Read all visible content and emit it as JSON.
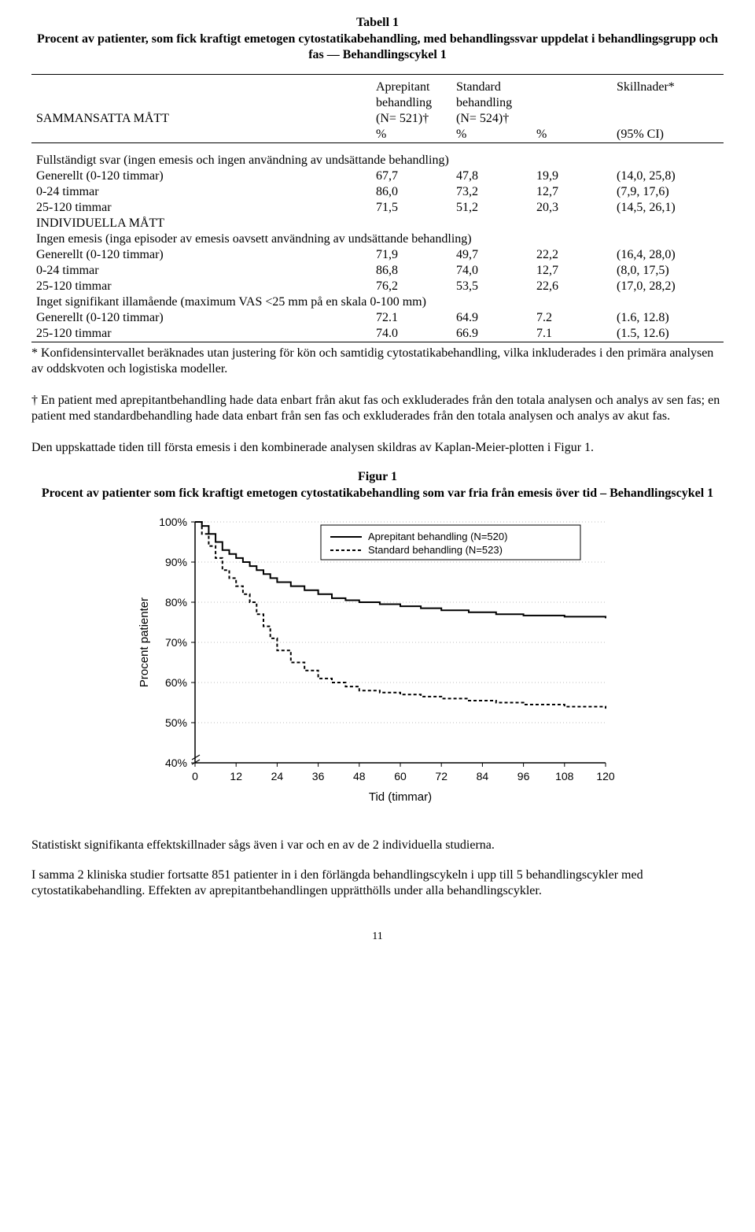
{
  "table": {
    "title": "Tabell 1",
    "subtitle": "Procent av patienter, som fick kraftigt emetogen cytostatikabehandling, med behandlingssvar uppdelat i behandlingsgrupp och fas — Behandlingscykel 1",
    "header": {
      "row_label": "SAMMANSATTA MÅTT",
      "col1_l1": "Aprepitant",
      "col1_l2": "behandling",
      "col1_l3": "(N= 521)†",
      "col2_l1": "Standard",
      "col2_l2": "behandling",
      "col2_l3": "(N= 524)†",
      "col3_l1": "Skillnader*",
      "pct": "%",
      "ci": "(95% CI)"
    },
    "section1": {
      "head": "Fullständigt svar (ingen emesis och ingen användning av undsättande behandling)",
      "rows": [
        {
          "label": "Generellt (0-120 timmar)",
          "a": "67,7",
          "b": "47,8",
          "d": "19,9",
          "ci": "(14,0, 25,8)"
        },
        {
          "label": "0-24 timmar",
          "a": "86,0",
          "b": "73,2",
          "d": "12,7",
          "ci": "(7,9, 17,6)"
        },
        {
          "label": "25-120 timmar",
          "a": "71,5",
          "b": "51,2",
          "d": "20,3",
          "ci": "(14,5, 26,1)"
        }
      ]
    },
    "ind_head": "INDIVIDUELLA MÅTT",
    "section2": {
      "head": "Ingen emesis (inga episoder av emesis oavsett användning av undsättande behandling)",
      "rows": [
        {
          "label": "Generellt (0-120 timmar)",
          "a": "71,9",
          "b": "49,7",
          "d": "22,2",
          "ci": "(16,4, 28,0)"
        },
        {
          "label": "0-24 timmar",
          "a": "86,8",
          "b": "74,0",
          "d": "12,7",
          "ci": "(8,0, 17,5)"
        },
        {
          "label": "25-120 timmar",
          "a": "76,2",
          "b": "53,5",
          "d": "22,6",
          "ci": "(17,0, 28,2)"
        }
      ]
    },
    "section3": {
      "head": "Inget signifikant illamående (maximum VAS <25 mm på en skala 0-100 mm)",
      "rows": [
        {
          "label": "Generellt (0-120 timmar)",
          "a": "72.1",
          "b": "64.9",
          "d": "7.2",
          "ci": "(1.6, 12.8)"
        },
        {
          "label": "25-120 timmar",
          "a": "74.0",
          "b": "66.9",
          "d": "7.1",
          "ci": "(1.5, 12.6)"
        }
      ]
    },
    "footnote_star": "* Konfidensintervallet beräknades utan justering för kön och samtidig cytostatikabehandling, vilka inkluderades i den primära analysen av oddskvoten och logistiska modeller.",
    "footnote_dagger": "† En patient med aprepitantbehandling hade data enbart från akut fas och exkluderades från den totala analysen och analys av sen fas; en patient med standardbehandling hade data enbart från sen fas och exkluderades från den totala analysen och analys av akut fas."
  },
  "para1": "Den uppskattade tiden till första emesis i den kombinerade analysen skildras av Kaplan-Meier-plotten i Figur 1.",
  "figure": {
    "title": "Figur 1",
    "subtitle": "Procent av patienter som fick kraftigt emetogen cytostatikabehandling som var fria från emesis över tid – Behandlingscykel 1",
    "ylabel": "Procent patienter",
    "xlabel": "Tid (timmar)",
    "legend": {
      "a": "Aprepitant behandling (N=520)",
      "b": "Standard behandling (N=523)"
    },
    "yticks": [
      40,
      50,
      60,
      70,
      80,
      90,
      100
    ],
    "xticks": [
      0,
      12,
      24,
      36,
      48,
      60,
      72,
      84,
      96,
      108,
      120
    ],
    "xlim": [
      0,
      120
    ],
    "ylim": [
      40,
      100
    ],
    "grid_color": "#bdbdbd",
    "axis_color": "#000000",
    "series": {
      "aprepitant": {
        "style": "solid",
        "color": "#000000",
        "width": 2,
        "points": [
          [
            0,
            100
          ],
          [
            2,
            99
          ],
          [
            4,
            97
          ],
          [
            6,
            95
          ],
          [
            8,
            93
          ],
          [
            10,
            92
          ],
          [
            12,
            91
          ],
          [
            14,
            90
          ],
          [
            16,
            89
          ],
          [
            18,
            88
          ],
          [
            20,
            87
          ],
          [
            22,
            86
          ],
          [
            24,
            85
          ],
          [
            28,
            84
          ],
          [
            32,
            83
          ],
          [
            36,
            82
          ],
          [
            40,
            81
          ],
          [
            44,
            80.5
          ],
          [
            48,
            80
          ],
          [
            54,
            79.5
          ],
          [
            60,
            79
          ],
          [
            66,
            78.5
          ],
          [
            72,
            78
          ],
          [
            80,
            77.5
          ],
          [
            88,
            77
          ],
          [
            96,
            76.7
          ],
          [
            108,
            76.4
          ],
          [
            120,
            76
          ]
        ]
      },
      "standard": {
        "style": "dashed",
        "color": "#000000",
        "width": 2,
        "dash": "4,3",
        "points": [
          [
            0,
            100
          ],
          [
            2,
            97
          ],
          [
            4,
            94
          ],
          [
            6,
            91
          ],
          [
            8,
            88
          ],
          [
            10,
            86
          ],
          [
            12,
            84
          ],
          [
            14,
            82
          ],
          [
            16,
            80
          ],
          [
            18,
            77
          ],
          [
            20,
            74
          ],
          [
            22,
            71
          ],
          [
            24,
            68
          ],
          [
            28,
            65
          ],
          [
            32,
            63
          ],
          [
            36,
            61
          ],
          [
            40,
            60
          ],
          [
            44,
            59
          ],
          [
            48,
            58
          ],
          [
            54,
            57.5
          ],
          [
            60,
            57
          ],
          [
            66,
            56.5
          ],
          [
            72,
            56
          ],
          [
            80,
            55.5
          ],
          [
            88,
            55
          ],
          [
            96,
            54.5
          ],
          [
            108,
            54
          ],
          [
            120,
            53.5
          ]
        ]
      }
    }
  },
  "para2": "Statistiskt signifikanta effektskillnader sågs även i var och en av de 2 individuella studierna.",
  "para3": "I samma 2 kliniska studier fortsatte 851 patienter in i den förlängda behandlingscykeln i upp till 5 behandlingscykler med cytostatikabehandling. Effekten av aprepitantbehandlingen upprätthölls under alla behandlingscykler.",
  "page_number": "11"
}
